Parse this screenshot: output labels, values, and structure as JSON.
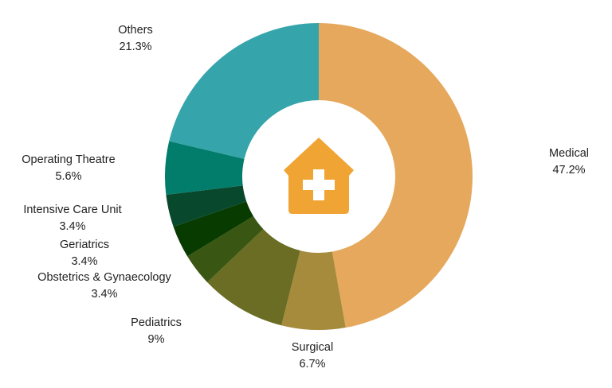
{
  "chart_data": {
    "type": "pie",
    "donut": true,
    "title": "",
    "legend": "none",
    "slices": [
      {
        "label": "Medical",
        "value": 47.2,
        "value_label": "47.2%",
        "color": "#E5A85C"
      },
      {
        "label": "Surgical",
        "value": 6.7,
        "value_label": "6.7%",
        "color": "#A68B3C"
      },
      {
        "label": "Pediatrics",
        "value": 9.0,
        "value_label": "9%",
        "color": "#6A6D23"
      },
      {
        "label": "Obstetrics & Gynaecology",
        "value": 3.4,
        "value_label": "3.4%",
        "color": "#3A5613"
      },
      {
        "label": "Geriatrics",
        "value": 3.4,
        "value_label": "3.4%",
        "color": "#073B00"
      },
      {
        "label": "Intensive Care Unit",
        "value": 3.4,
        "value_label": "3.4%",
        "color": "#08482C"
      },
      {
        "label": "Operating Theatre",
        "value": 5.6,
        "value_label": "5.6%",
        "color": "#027C6B"
      },
      {
        "label": "Others",
        "value": 21.3,
        "value_label": "21.3%",
        "color": "#35A4AB"
      }
    ]
  },
  "center_icon": {
    "name": "hospital-icon",
    "color": "#F0A433"
  }
}
